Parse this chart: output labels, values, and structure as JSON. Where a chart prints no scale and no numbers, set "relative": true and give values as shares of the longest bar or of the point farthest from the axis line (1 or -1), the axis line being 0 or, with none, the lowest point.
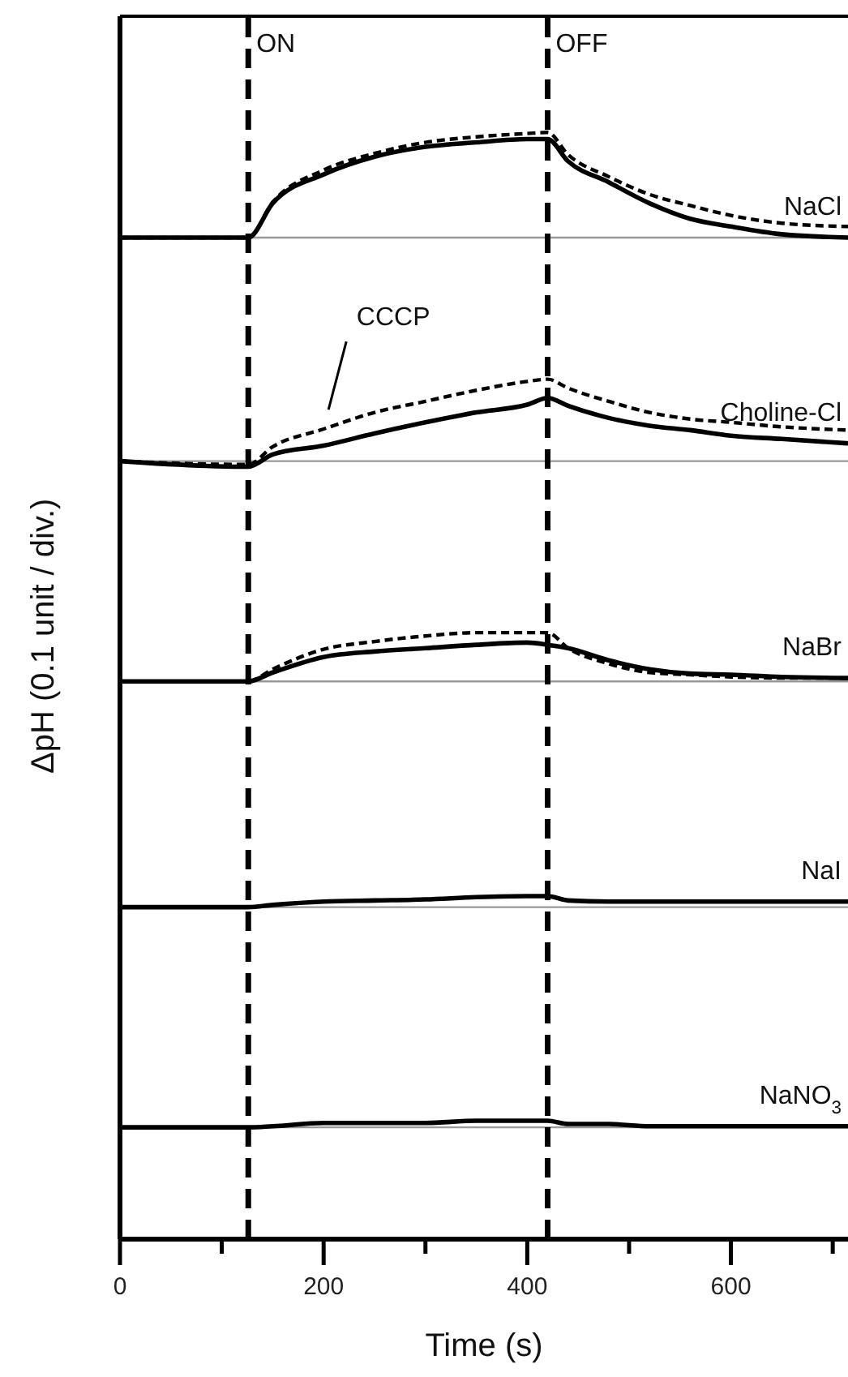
{
  "chart_data": {
    "type": "line",
    "xlabel": "Time (s)",
    "ylabel": "ΔpH (0.1 unit / div.)",
    "relative": true,
    "x": [
      0,
      120,
      126,
      150,
      200,
      250,
      300,
      350,
      400,
      420,
      440,
      480,
      520,
      560,
      600,
      650,
      715
    ],
    "xlim": [
      0,
      715
    ],
    "xticks": [
      0,
      {
        "value": 100,
        "label": null
      },
      200,
      {
        "value": 300,
        "label": null
      },
      400,
      {
        "value": 500,
        "label": null
      },
      600,
      {
        "value": 700,
        "label": null
      }
    ],
    "series": [
      {
        "name": "NaCl",
        "color": "#000000",
        "line_style": "solid",
        "values": [
          0.905,
          0.905,
          0.905,
          0.936,
          0.962,
          0.978,
          0.987,
          0.991,
          0.994,
          0.994,
          0.974,
          0.955,
          0.936,
          0.922,
          0.915,
          0.908,
          0.905
        ]
      },
      {
        "color": "#000000",
        "line_style": "dashed",
        "values": [
          0.905,
          0.905,
          0.905,
          0.937,
          0.966,
          0.981,
          0.991,
          0.996,
          0.999,
          1.0,
          0.98,
          0.96,
          0.944,
          0.934,
          0.925,
          0.918,
          0.915
        ]
      },
      {
        "name": "Choline-Cl",
        "color": "#000000",
        "line_style": "solid",
        "values": [
          0.703,
          0.698,
          0.698,
          0.709,
          0.717,
          0.728,
          0.738,
          0.747,
          0.754,
          0.76,
          0.753,
          0.742,
          0.735,
          0.731,
          0.726,
          0.723,
          0.719
        ]
      },
      {
        "name": "CCCP",
        "color": "#000000",
        "line_style": "dashed",
        "values": [
          0.703,
          0.7,
          0.7,
          0.716,
          0.732,
          0.747,
          0.757,
          0.767,
          0.775,
          0.777,
          0.769,
          0.757,
          0.747,
          0.741,
          0.738,
          0.734,
          0.731
        ]
      },
      {
        "name": "NaBr",
        "color": "#000000",
        "line_style": "solid",
        "values": [
          0.504,
          0.504,
          0.504,
          0.512,
          0.526,
          0.531,
          0.534,
          0.537,
          0.539,
          0.537,
          0.534,
          0.523,
          0.515,
          0.511,
          0.51,
          0.508,
          0.507
        ]
      },
      {
        "color": "#000000",
        "line_style": "dashed",
        "values": [
          0.504,
          0.504,
          0.504,
          0.515,
          0.533,
          0.54,
          0.545,
          0.548,
          0.548,
          0.548,
          0.534,
          0.52,
          0.512,
          0.51,
          0.508,
          0.507,
          0.507
        ]
      },
      {
        "name": "NaI",
        "color": "#000000",
        "line_style": "solid",
        "values": [
          0.3,
          0.3,
          0.3,
          0.302,
          0.305,
          0.306,
          0.307,
          0.309,
          0.31,
          0.31,
          0.306,
          0.305,
          0.305,
          0.305,
          0.305,
          0.305,
          0.305
        ]
      },
      {
        "name": "NaNO$_{3}$",
        "color": "#000000",
        "line_style": "solid",
        "values": [
          0.101,
          0.101,
          0.101,
          0.102,
          0.105,
          0.105,
          0.105,
          0.107,
          0.107,
          0.107,
          0.104,
          0.104,
          0.102,
          0.102,
          0.102,
          0.102,
          0.102
        ]
      }
    ],
    "ref_lines": [
      {
        "axis": "y",
        "value": 0.905,
        "color": "#999999",
        "line_style": "solid"
      },
      {
        "axis": "y",
        "value": 0.703,
        "color": "#999999",
        "line_style": "solid"
      },
      {
        "axis": "y",
        "value": 0.504,
        "color": "#999999",
        "line_style": "solid"
      },
      {
        "axis": "y",
        "value": 0.3,
        "color": "#999999",
        "line_style": "solid"
      },
      {
        "axis": "y",
        "value": 0.101,
        "color": "#999999",
        "line_style": "solid"
      },
      {
        "axis": "x",
        "value": 126,
        "label": "ON",
        "color": "#000000",
        "line_style": "dashed"
      },
      {
        "axis": "x",
        "value": 420,
        "label": "OFF",
        "color": "#000000",
        "line_style": "dashed"
      }
    ]
  }
}
